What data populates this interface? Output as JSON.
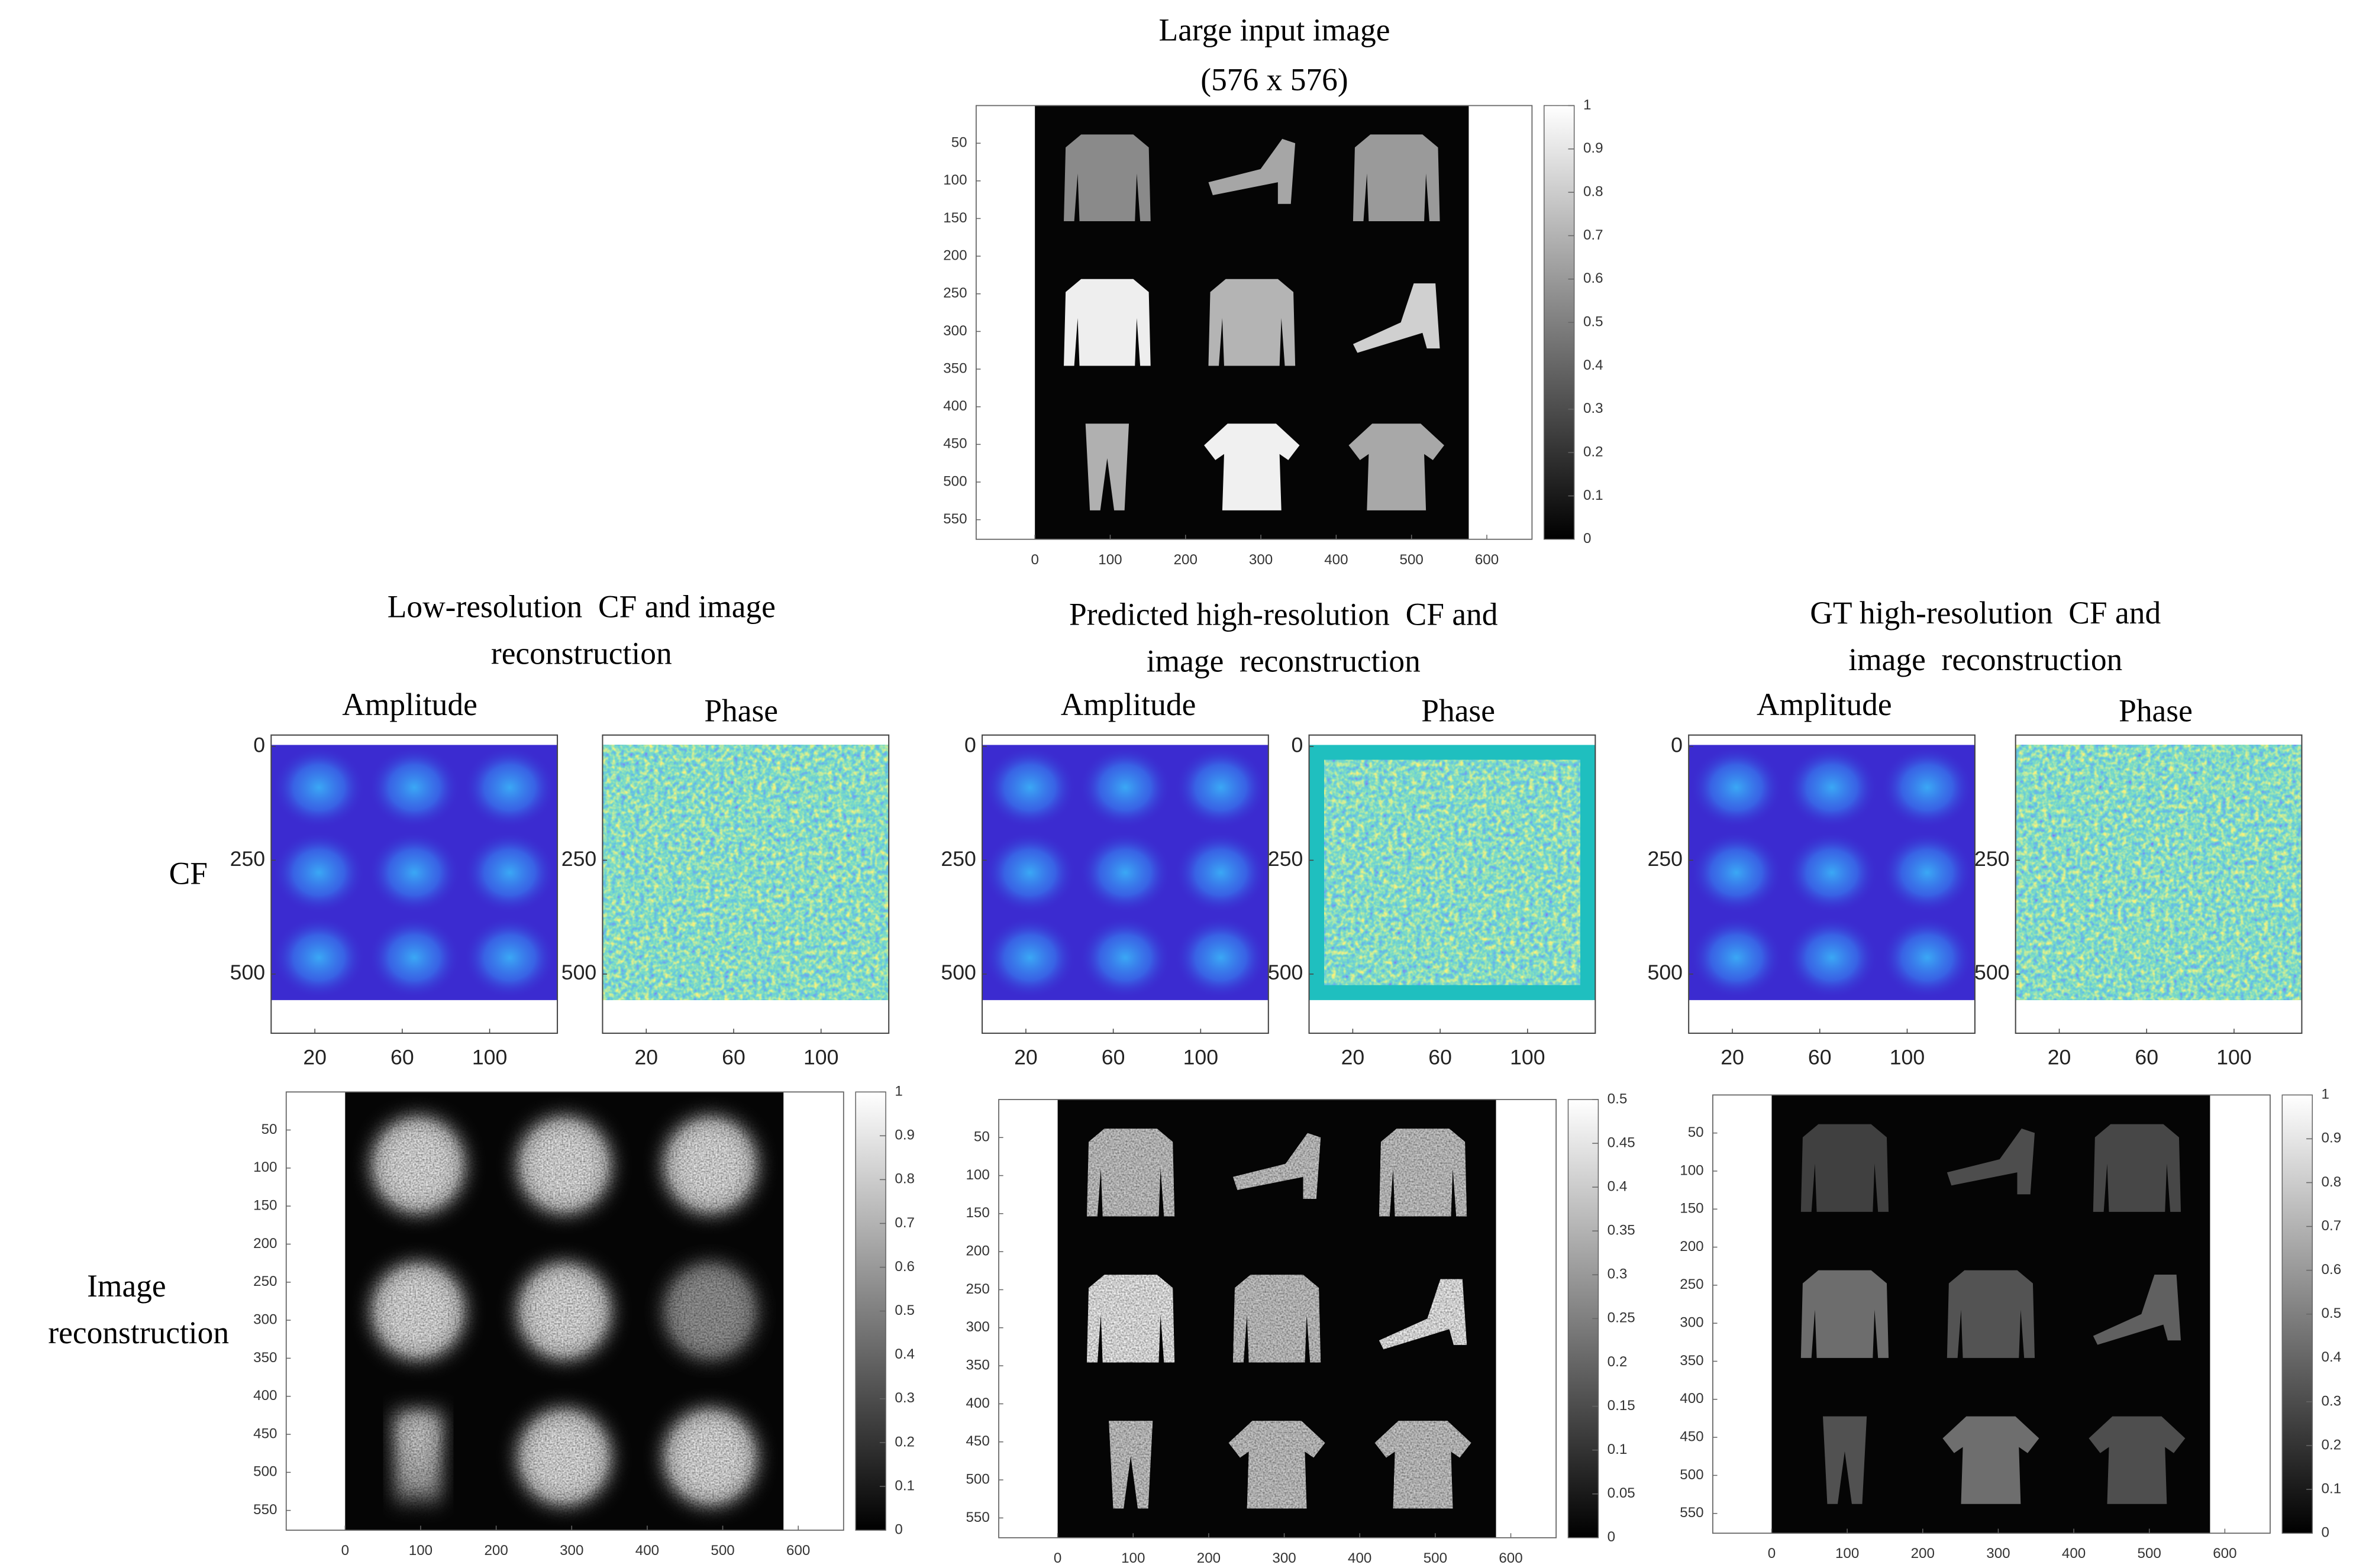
{
  "top": {
    "title": "Large input image",
    "subtitle": "(576 x 576)",
    "colorbar": {
      "lim": [
        0,
        1
      ],
      "ticks": [
        0,
        0.1,
        0.2,
        0.3,
        0.4,
        0.5,
        0.6,
        0.7,
        0.8,
        0.9,
        1
      ]
    }
  },
  "image_axes": {
    "xlim": [
      -78,
      660
    ],
    "ylim": [
      0,
      576
    ],
    "xticks": [
      0,
      100,
      200,
      300,
      400,
      500,
      600
    ],
    "yticks": [
      50,
      100,
      150,
      200,
      250,
      300,
      350,
      400,
      450,
      500,
      550
    ]
  },
  "cf_axes": {
    "xlim": [
      0,
      131
    ],
    "ylim": [
      -25,
      630
    ],
    "xticks": [
      20,
      60,
      100
    ]
  },
  "row_labels": {
    "cf": "CF",
    "reconstruction": [
      "Image",
      "reconstruction"
    ]
  },
  "groups": [
    {
      "title": [
        "Low-resolution  CF and image",
        "reconstruction"
      ],
      "amplitude": {
        "label": "Amplitude",
        "yticks": [
          0,
          250,
          500
        ]
      },
      "phase": {
        "label": "Phase",
        "yticks": [
          250,
          500
        ]
      },
      "reconstruction": {
        "colorbar": {
          "lim": [
            0,
            1
          ],
          "ticks": [
            0,
            0.1,
            0.2,
            0.3,
            0.4,
            0.5,
            0.6,
            0.7,
            0.8,
            0.9,
            1
          ]
        }
      }
    },
    {
      "title": [
        "Predicted high-resolution  CF and",
        "image  reconstruction"
      ],
      "amplitude": {
        "label": "Amplitude",
        "yticks": [
          0,
          250,
          500
        ]
      },
      "phase": {
        "label": "Phase",
        "yticks": [
          0,
          250,
          500
        ]
      },
      "reconstruction": {
        "colorbar": {
          "lim": [
            0,
            0.5
          ],
          "ticks": [
            0,
            0.05,
            0.1,
            0.15,
            0.2,
            0.25,
            0.3,
            0.35,
            0.4,
            0.45,
            0.5
          ]
        }
      }
    },
    {
      "title": [
        "GT high-resolution  CF and",
        "image  reconstruction"
      ],
      "amplitude": {
        "label": "Amplitude",
        "yticks": [
          0,
          250,
          500
        ]
      },
      "phase": {
        "label": "Phase",
        "yticks": [
          250,
          500
        ]
      },
      "reconstruction": {
        "colorbar": {
          "lim": [
            0,
            1
          ],
          "ticks": [
            0,
            0.1,
            0.2,
            0.3,
            0.4,
            0.5,
            0.6,
            0.7,
            0.8,
            0.9,
            1
          ]
        }
      }
    }
  ]
}
